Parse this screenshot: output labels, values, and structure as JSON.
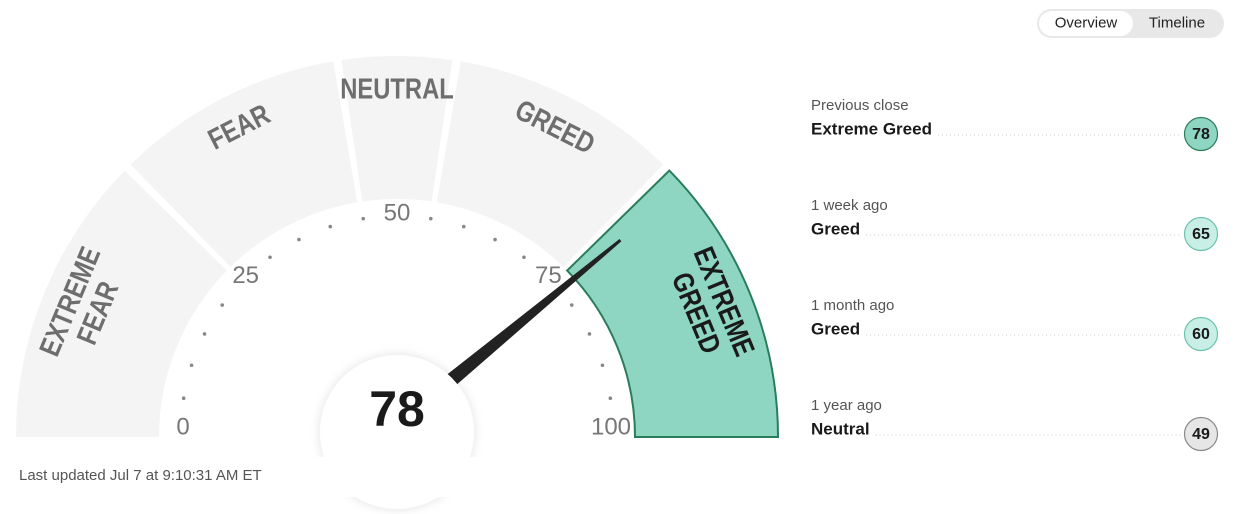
{
  "tabs": [
    "Overview",
    "Timeline"
  ],
  "chart_data": {
    "type": "gauge",
    "value": 78,
    "range": [
      0,
      100
    ],
    "ticks": [
      0,
      25,
      50,
      75,
      100
    ],
    "color": "#f4f4f4",
    "active_color": "#8fd6c2",
    "active_border": "#2a7d5b",
    "segments": [
      {
        "label": [
          "EXTREME",
          "FEAR"
        ],
        "from": 0,
        "to": 25
      },
      {
        "label": [
          "FEAR"
        ],
        "from": 25,
        "to": 45
      },
      {
        "label": [
          "NEUTRAL"
        ],
        "from": 45,
        "to": 55
      },
      {
        "label": [
          "GREED"
        ],
        "from": 55,
        "to": 75
      },
      {
        "label": [
          "EXTREME",
          "GREED"
        ],
        "from": 75,
        "to": 100
      }
    ]
  },
  "last_updated": "Last updated Jul 7 at 9:10:31 AM ET",
  "history": [
    {
      "period": "Previous close",
      "rating": "Extreme Greed",
      "value": 78,
      "color": "#8fd6c2",
      "border": "#2a7d5b"
    },
    {
      "period": "1 week ago",
      "rating": "Greed",
      "value": 65,
      "color": "#c8efe6",
      "border": "#6cc3ad"
    },
    {
      "period": "1 month ago",
      "rating": "Greed",
      "value": 60,
      "color": "#c8efe6",
      "border": "#6cc3ad"
    },
    {
      "period": "1 year ago",
      "rating": "Neutral",
      "value": 49,
      "color": "#e6e6e6",
      "border": "#8a8a8a"
    }
  ]
}
